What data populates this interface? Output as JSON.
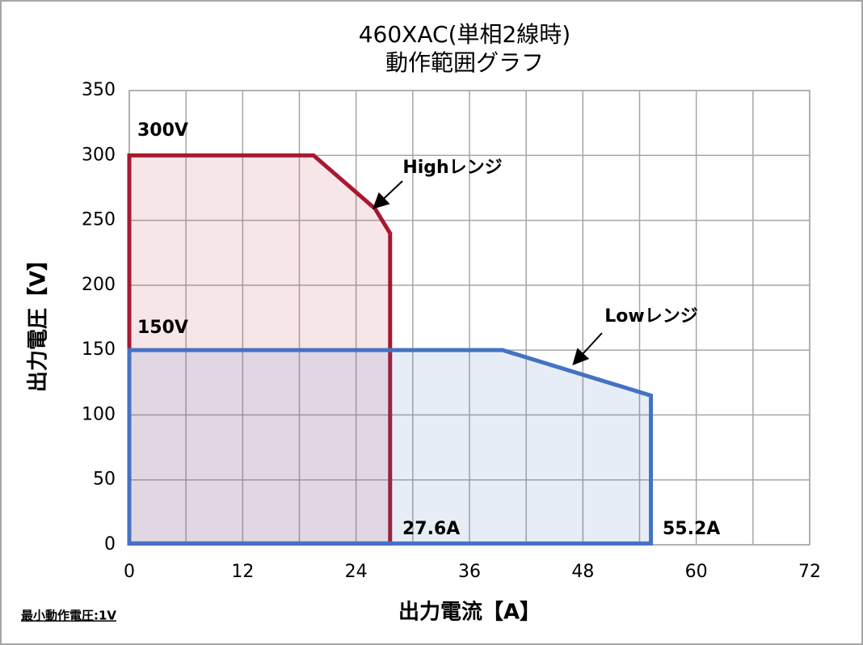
{
  "chart_data": {
    "type": "area",
    "title": "460XAC(単相2線時)",
    "subtitle": "動作範囲グラフ",
    "x_label": "出力電流【A】",
    "y_label": "出力電圧【V】",
    "xlim": [
      0,
      72
    ],
    "xticks": [
      0,
      12,
      24,
      36,
      48,
      60,
      72
    ],
    "xminorticks": [
      6,
      18,
      30,
      42,
      54,
      66
    ],
    "ylim": [
      0,
      350
    ],
    "yticks": [
      0,
      50,
      100,
      150,
      200,
      250,
      300,
      350
    ],
    "grid": true,
    "series": [
      {
        "name": "Highレンジ",
        "color": "#a8182e",
        "x": [
          0,
          0,
          19.5,
          26,
          27.6,
          27.6
        ],
        "values": [
          1,
          300,
          300,
          259,
          240,
          1
        ]
      },
      {
        "name": "Lowレンジ",
        "color": "#4472c4",
        "x": [
          0,
          0,
          39.5,
          55.2,
          55.2
        ],
        "values": [
          1,
          150,
          150,
          115,
          1
        ]
      }
    ],
    "annotations": [
      "300V",
      "150V",
      "27.6A",
      "55.2A"
    ],
    "note": "最小動作電圧:1V"
  }
}
